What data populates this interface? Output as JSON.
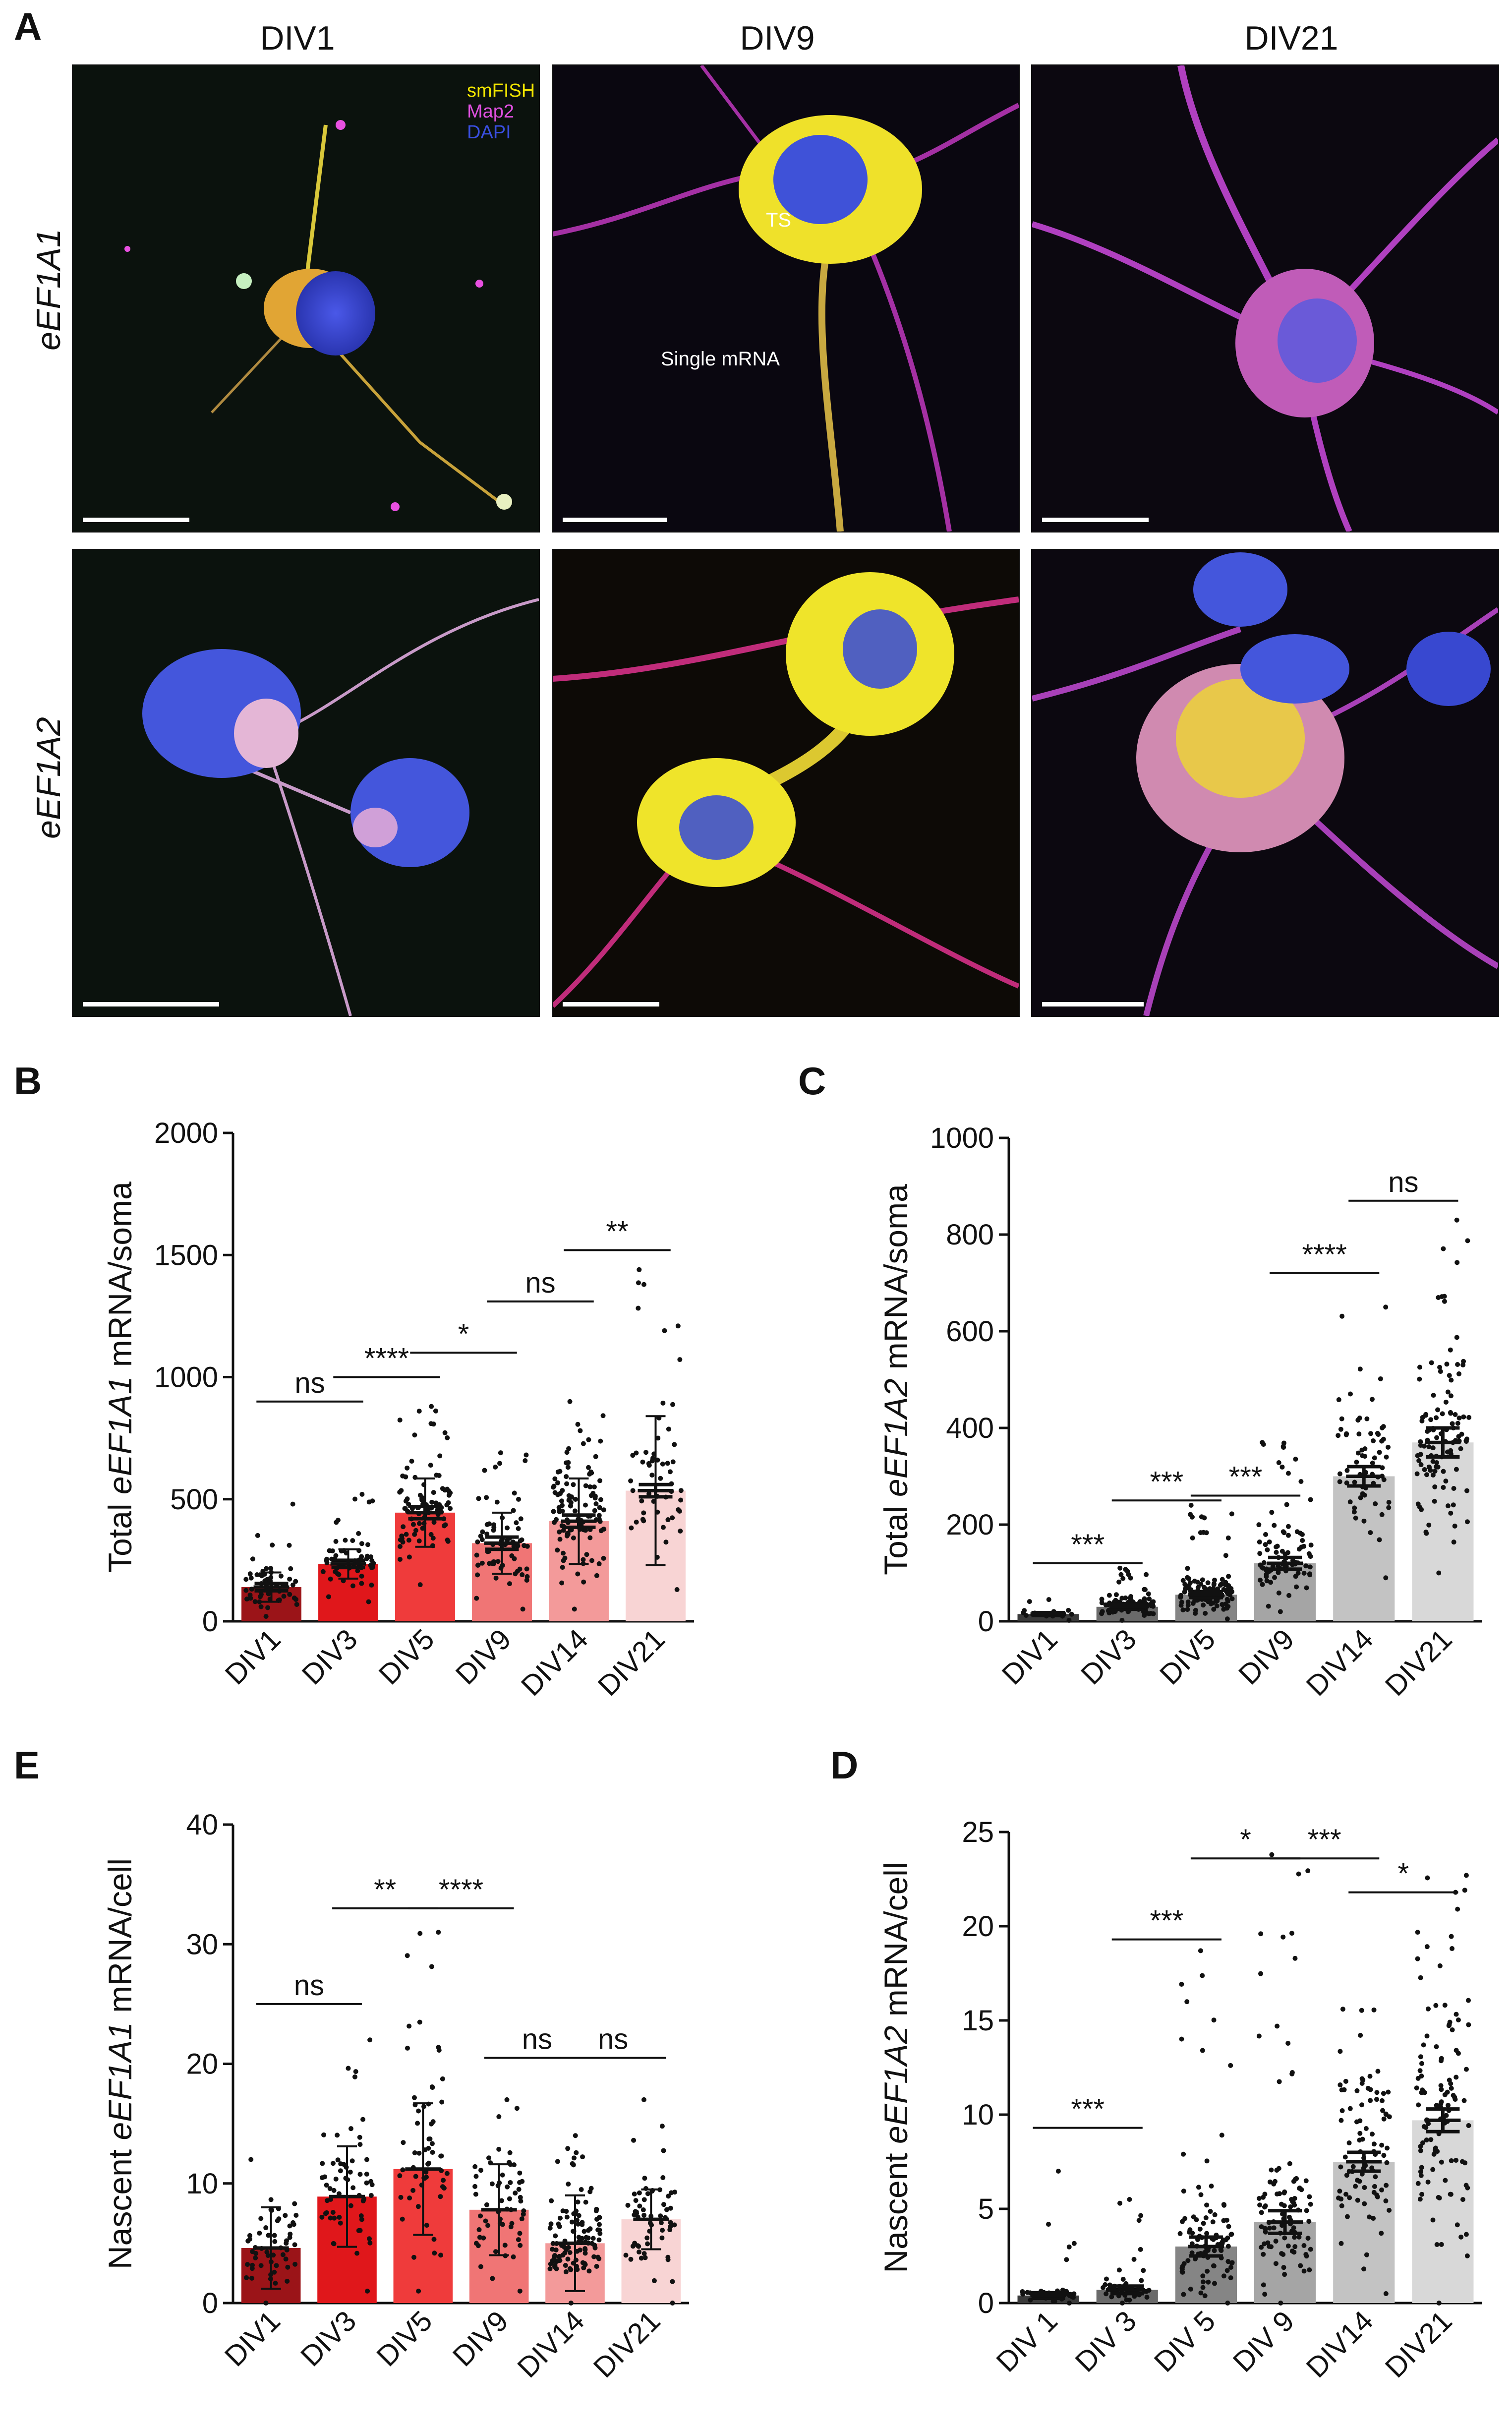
{
  "panel_labels": {
    "a": "A",
    "b": "B",
    "c": "C",
    "e": "E",
    "d": "D"
  },
  "column_titles": [
    "DIV1",
    "DIV9",
    "DIV21"
  ],
  "row_labels": [
    "eEF1A1",
    "eEF1A2"
  ],
  "legend": {
    "smfish": "smFISH",
    "map2": "Map2",
    "dapi": "DAPI"
  },
  "legend_colors": {
    "smfish": "#f2e600",
    "map2": "#e050e0",
    "dapi": "#3a4fe0"
  },
  "annotations": {
    "ts": "TS",
    "single": "Single mRNA"
  },
  "chart_data": [
    {
      "id": "B",
      "type": "bar",
      "ylabel_pre": "Total ",
      "ylabel_gene": "eEF1A1",
      "ylabel_post": " mRNA/soma",
      "categories": [
        "DIV1",
        "DIV3",
        "DIV5",
        "DIV9",
        "DIV14",
        "DIV21"
      ],
      "values": [
        140,
        235,
        445,
        320,
        410,
        535
      ],
      "sd": [
        60,
        60,
        140,
        125,
        175,
        305
      ],
      "sem": [
        15,
        15,
        25,
        25,
        25,
        25
      ],
      "ylim": [
        0,
        2000
      ],
      "yticks": [
        0,
        500,
        1000,
        1500,
        2000
      ],
      "colors": [
        "#9b1418",
        "#e0171b",
        "#ef3b3b",
        "#f07575",
        "#f39a9a",
        "#f8d4d4"
      ],
      "dot_spread": [
        [
          20,
          480
        ],
        [
          80,
          520
        ],
        [
          150,
          880
        ],
        [
          50,
          690
        ],
        [
          50,
          900
        ],
        [
          130,
          1440
        ]
      ],
      "dot_counts": [
        60,
        60,
        90,
        70,
        110,
        55
      ],
      "error_style": "both",
      "comparisons": [
        {
          "from": 0,
          "to": 1,
          "y": 900,
          "label": "ns"
        },
        {
          "from": 1,
          "to": 2,
          "y": 1000,
          "label": "****"
        },
        {
          "from": 2,
          "to": 3,
          "y": 1100,
          "label": "*"
        },
        {
          "from": 3,
          "to": 4,
          "y": 1310,
          "label": "ns"
        },
        {
          "from": 4,
          "to": 5,
          "y": 1520,
          "label": "**"
        }
      ]
    },
    {
      "id": "C",
      "type": "bar",
      "ylabel_pre": "Total ",
      "ylabel_gene": "eEF1A2",
      "ylabel_post": " mRNA/soma",
      "categories": [
        "DIV1",
        "DIV3",
        "DIV5",
        "DIV9",
        "DIV14",
        "DIV21"
      ],
      "values": [
        15,
        30,
        55,
        120,
        300,
        370
      ],
      "sem": [
        3,
        5,
        6,
        12,
        20,
        30
      ],
      "ylim": [
        0,
        1000
      ],
      "yticks": [
        0,
        200,
        400,
        600,
        800,
        1000
      ],
      "colors": [
        "#3a3a3a",
        "#6a6a6a",
        "#858585",
        "#a5a5a5",
        "#c3c3c3",
        "#d8d8d8"
      ],
      "dot_spread": [
        [
          2,
          45
        ],
        [
          2,
          110
        ],
        [
          5,
          240
        ],
        [
          20,
          370
        ],
        [
          90,
          650
        ],
        [
          100,
          830
        ]
      ],
      "dot_counts": [
        20,
        90,
        120,
        90,
        65,
        110
      ],
      "error_style": "sem",
      "comparisons": [
        {
          "from": 0,
          "to": 1,
          "y": 120,
          "label": "***"
        },
        {
          "from": 1,
          "to": 2,
          "y": 250,
          "label": "***"
        },
        {
          "from": 2,
          "to": 3,
          "y": 260,
          "label": "***"
        },
        {
          "from": 3,
          "to": 4,
          "y": 720,
          "label": "****"
        },
        {
          "from": 4,
          "to": 5,
          "y": 870,
          "label": "ns"
        }
      ]
    },
    {
      "id": "E",
      "type": "bar",
      "ylabel_pre": "Nascent ",
      "ylabel_gene": "eEF1A1",
      "ylabel_post": " mRNA/cell",
      "categories": [
        "DIV1",
        "DIV3",
        "DIV5",
        "DIV9",
        "DIV14",
        "DIV21"
      ],
      "values": [
        4.6,
        8.9,
        11.2,
        7.8,
        5.0,
        7.0
      ],
      "sd": [
        3.4,
        4.2,
        5.5,
        3.8,
        4.0,
        2.5
      ],
      "ylim": [
        0,
        40
      ],
      "yticks": [
        0,
        10,
        20,
        30,
        40
      ],
      "colors": [
        "#9b1418",
        "#e0171b",
        "#ef3b3b",
        "#f07575",
        "#f39a9a",
        "#f8d4d4"
      ],
      "dot_spread": [
        [
          0,
          12
        ],
        [
          1,
          22
        ],
        [
          1,
          31
        ],
        [
          1,
          17
        ],
        [
          0,
          14
        ],
        [
          0,
          17
        ]
      ],
      "dot_counts": [
        55,
        60,
        60,
        60,
        110,
        60
      ],
      "error_style": "sd",
      "comparisons": [
        {
          "from": 0,
          "to": 1,
          "y": 25,
          "label": "ns"
        },
        {
          "from": 1,
          "to": 2,
          "y": 33,
          "label": "**"
        },
        {
          "from": 2,
          "to": 3,
          "y": 33,
          "label": "****"
        },
        {
          "from": 3,
          "to": 4,
          "y": 20.5,
          "label": "ns"
        },
        {
          "from": 4,
          "to": 5,
          "y": 20.5,
          "label": "ns"
        }
      ]
    },
    {
      "id": "D",
      "type": "bar",
      "ylabel_pre": "Nascent ",
      "ylabel_gene": "eEF1A2",
      "ylabel_post": " mRNA/cell",
      "categories": [
        "DIV 1",
        "DIV 3",
        "DIV 5",
        "DIV 9",
        "DIV14",
        "DIV21"
      ],
      "values": [
        0.4,
        0.7,
        3.0,
        4.3,
        7.5,
        9.7
      ],
      "sem": [
        0.15,
        0.2,
        0.5,
        0.6,
        0.5,
        0.6
      ],
      "ylim": [
        0,
        25
      ],
      "yticks": [
        0,
        5,
        10,
        15,
        20,
        25
      ],
      "colors": [
        "#3a3a3a",
        "#6a6a6a",
        "#858585",
        "#a5a5a5",
        "#c3c3c3",
        "#d8d8d8"
      ],
      "dot_spread": [
        [
          0,
          7
        ],
        [
          0,
          5.5
        ],
        [
          0,
          18.7
        ],
        [
          0,
          23.8
        ],
        [
          0.5,
          15.6
        ],
        [
          0,
          22.7
        ]
      ],
      "dot_counts": [
        40,
        50,
        100,
        100,
        90,
        110
      ],
      "error_style": "sem",
      "comparisons": [
        {
          "from": 0,
          "to": 1,
          "y": 9.3,
          "label": "***"
        },
        {
          "from": 1,
          "to": 2,
          "y": 19.3,
          "label": "***"
        },
        {
          "from": 2,
          "to": 3,
          "y": 23.6,
          "label": "*"
        },
        {
          "from": 3,
          "to": 4,
          "y": 23.6,
          "label": "***"
        },
        {
          "from": 4,
          "to": 5,
          "y": 21.8,
          "label": "*"
        }
      ]
    }
  ]
}
